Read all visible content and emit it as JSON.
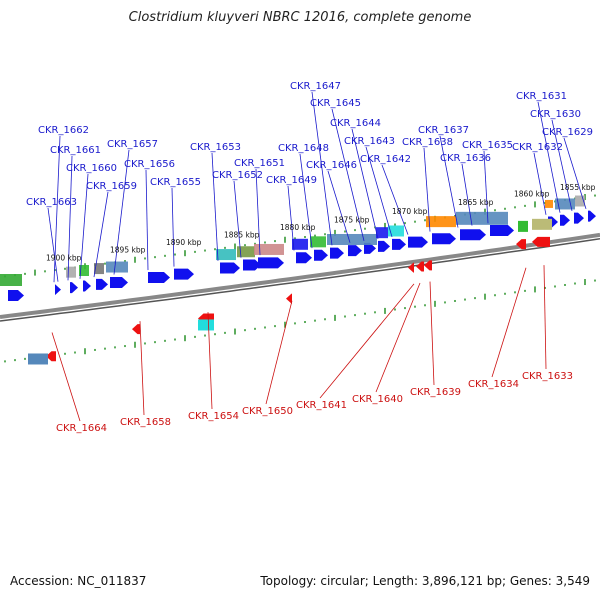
{
  "title": "Clostridium kluyveri NBRC 12016, complete genome",
  "footer": {
    "accession": "Accession: NC_011837",
    "summary": "Topology: circular; Length: 3,896,121 bp; Genes: 3,549"
  },
  "colors": {
    "forward_label": "#1a1acc",
    "reverse_label": "#cc1111",
    "forward_arrow": "#1010ee",
    "reverse_arrow": "#ee1111",
    "tick": "#1a8a1a"
  },
  "scale_labels": [
    "1900 kbp",
    "1895 kbp",
    "1890 kbp",
    "1885 kbp",
    "1880 kbp",
    "1875 kbp",
    "1870 kbp",
    "1865 kbp",
    "1860 kbp",
    "1855 kbp"
  ],
  "forward_genes": [
    "CKR_1663",
    "CKR_1662",
    "CKR_1661",
    "CKR_1660",
    "CKR_1659",
    "CKR_1657",
    "CKR_1656",
    "CKR_1655",
    "CKR_1653",
    "CKR_1652",
    "CKR_1651",
    "CKR_1649",
    "CKR_1648",
    "CKR_1647",
    "CKR_1646",
    "CKR_1645",
    "CKR_1644",
    "CKR_1643",
    "CKR_1642",
    "CKR_1638",
    "CKR_1637",
    "CKR_1636",
    "CKR_1635",
    "CKR_1632",
    "CKR_1631",
    "CKR_1630",
    "CKR_1629"
  ],
  "reverse_genes": [
    "CKR_1664",
    "CKR_1658",
    "CKR_1654",
    "CKR_1650",
    "CKR_1641",
    "CKR_1640",
    "CKR_1639",
    "CKR_1634",
    "CKR_1633"
  ]
}
